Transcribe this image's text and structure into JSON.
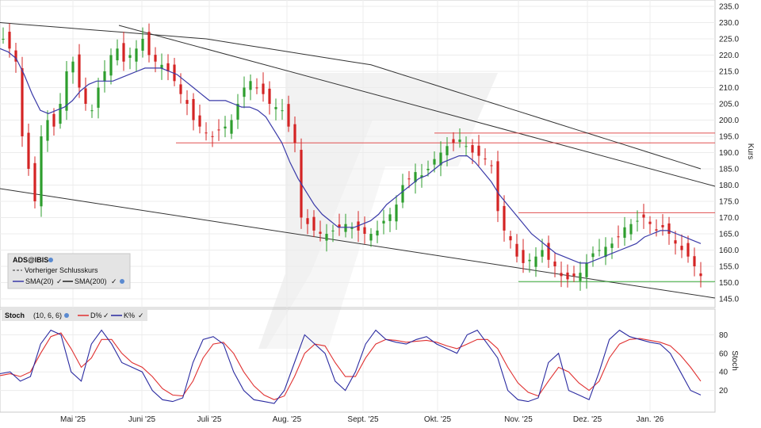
{
  "chart_data": [
    {
      "type": "candlestick",
      "ylabel": "Kurs",
      "ylim": [
        140,
        235
      ],
      "y_ticks": [
        "235.0",
        "230.0",
        "225.0",
        "220.0",
        "215.0",
        "210.0",
        "205.0",
        "200.0",
        "195.0",
        "190.0",
        "185.0",
        "180.0",
        "175.0",
        "170.0",
        "165.0",
        "160.0",
        "155.0",
        "150.0",
        "145.0"
      ],
      "x_ticks": [
        "Mai '25",
        "Juni '25",
        "Juli '25",
        "Aug. '25",
        "Sept. '25",
        "Okt. '25",
        "Nov. '25",
        "Dez. '25",
        "Jan. '26"
      ],
      "grid": true,
      "legend_position": "bottom-left",
      "legend": {
        "symbol": "ADS@IBIS",
        "prev_close": "Vorheriger Schlusskurs",
        "sma20": "SMA(20)",
        "sma200": "SMA(200)"
      },
      "colors": {
        "up": "#2e9e2e",
        "down": "#d42424",
        "sma20": "#3a3aa8",
        "sma200": "#333333",
        "resistance": "#e05050",
        "support": "#3aaa3a"
      },
      "closes": [
        225,
        222,
        218,
        195,
        185,
        175,
        195,
        200,
        198,
        205,
        215,
        218,
        210,
        205,
        203,
        210,
        215,
        220,
        222,
        218,
        220,
        222,
        225,
        220,
        218,
        217,
        215,
        212,
        208,
        205,
        200,
        198,
        196,
        195,
        197,
        198,
        200,
        205,
        210,
        212,
        210,
        208,
        205,
        204,
        203,
        198,
        193,
        170,
        168,
        166,
        165,
        165,
        166,
        167,
        168,
        167,
        166,
        165,
        165,
        166,
        169,
        171,
        174,
        180,
        182,
        184,
        183,
        185,
        188,
        190,
        192,
        193,
        194,
        192,
        190,
        189,
        188,
        186,
        172,
        166,
        163,
        158,
        156,
        157,
        158,
        160,
        157,
        155,
        152,
        151,
        152,
        153,
        156,
        159,
        160,
        161,
        162,
        164,
        167,
        168,
        169,
        170,
        168,
        166,
        167,
        165,
        162,
        160,
        158,
        155,
        152
      ],
      "sma20": [
        222,
        221,
        219,
        214,
        208,
        203,
        202,
        203,
        204,
        206,
        209,
        211,
        212,
        212,
        212,
        213,
        214,
        215,
        216,
        216,
        216,
        215,
        214,
        212,
        210,
        208,
        206,
        206,
        206,
        205,
        204,
        204,
        203,
        201,
        197,
        193,
        187,
        182,
        178,
        174,
        171,
        169,
        167,
        167,
        167,
        168,
        169,
        171,
        174,
        176,
        178,
        180,
        182,
        183,
        185,
        187,
        188,
        189,
        189,
        187,
        184,
        181,
        177,
        174,
        171,
        168,
        165,
        163,
        161,
        159,
        158,
        157,
        156,
        156,
        157,
        158,
        159,
        160,
        161,
        162,
        164,
        165,
        166,
        166,
        165,
        164,
        163,
        162
      ],
      "sma200": [
        230,
        229.5,
        229,
        228.5,
        228,
        227.5,
        227,
        226.5,
        226,
        225.5,
        225,
        224,
        223,
        222,
        221,
        220,
        219,
        218,
        217,
        215,
        213,
        211,
        209,
        207,
        205,
        203,
        201,
        199,
        197,
        195,
        193,
        191,
        189,
        187,
        185
      ],
      "levels": {
        "resistance": [
          196,
          193,
          171.5
        ],
        "support": [
          150.3
        ]
      }
    },
    {
      "type": "line",
      "title": "Stoch",
      "params": "(10, 6, 6)",
      "ylabel": "Stoch",
      "ylim": [
        0,
        100
      ],
      "y_ticks": [
        "80",
        "60",
        "40",
        "20"
      ],
      "legend": {
        "d": "D%",
        "k": "K%"
      },
      "colors": {
        "k": "#2a2aa0",
        "d": "#e03030"
      },
      "series": [
        {
          "name": "K%",
          "values": [
            38,
            40,
            30,
            35,
            70,
            85,
            80,
            40,
            30,
            70,
            85,
            70,
            50,
            45,
            40,
            20,
            10,
            8,
            12,
            50,
            75,
            78,
            70,
            40,
            20,
            10,
            8,
            6,
            20,
            50,
            80,
            70,
            60,
            30,
            20,
            40,
            70,
            85,
            75,
            72,
            70,
            75,
            78,
            70,
            65,
            60,
            80,
            85,
            70,
            55,
            20,
            10,
            8,
            12,
            50,
            60,
            20,
            15,
            10,
            40,
            75,
            85,
            78,
            75,
            72,
            70,
            60,
            40,
            20,
            15
          ]
        },
        {
          "name": "D%",
          "values": [
            36,
            38,
            35,
            40,
            60,
            78,
            82,
            65,
            45,
            55,
            75,
            75,
            60,
            50,
            45,
            35,
            22,
            15,
            14,
            30,
            55,
            70,
            72,
            60,
            40,
            25,
            15,
            10,
            14,
            35,
            60,
            70,
            68,
            50,
            35,
            35,
            55,
            70,
            75,
            74,
            72,
            73,
            74,
            72,
            68,
            65,
            70,
            75,
            75,
            65,
            45,
            28,
            18,
            14,
            30,
            45,
            40,
            28,
            20,
            30,
            55,
            70,
            75,
            76,
            74,
            72,
            68,
            58,
            45,
            30
          ]
        }
      ]
    }
  ]
}
